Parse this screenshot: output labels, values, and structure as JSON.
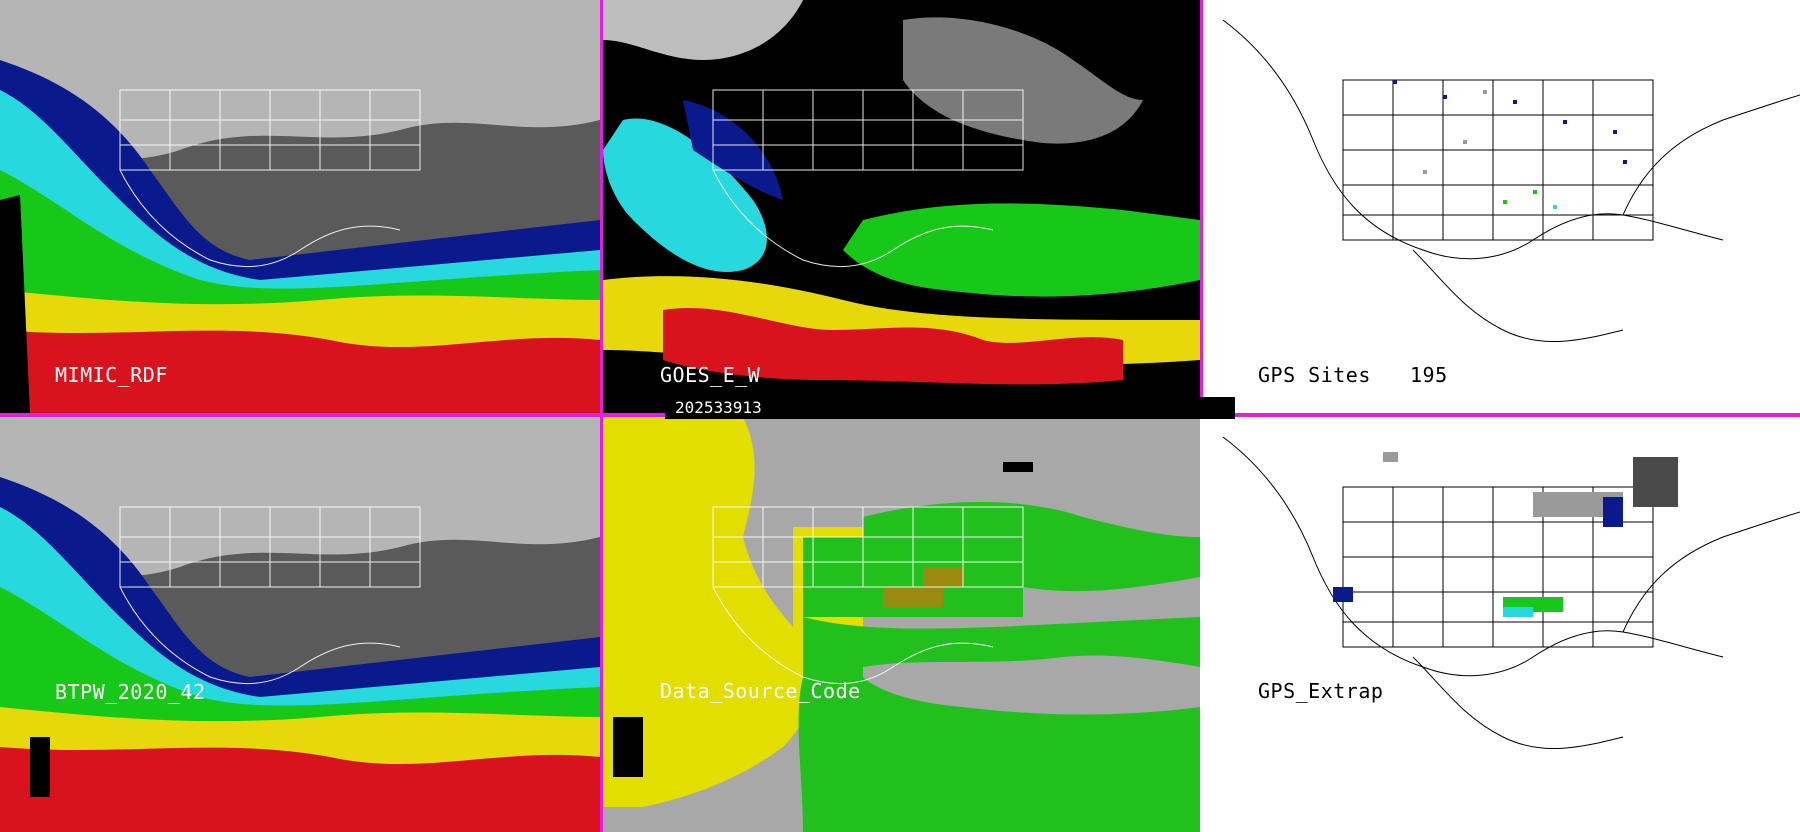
{
  "panels": {
    "p1": {
      "label": "MIMIC_RDF"
    },
    "p2": {
      "label": "GOES_E_W"
    },
    "p3": {
      "label": "GPS Sites",
      "count": "195"
    },
    "p4": {
      "label": "BTPW_2020_42"
    },
    "p5": {
      "label": "Data_Source_Code"
    },
    "p6": {
      "label": "GPS_Extrap"
    }
  },
  "timestamp": "202533913",
  "colors": {
    "separator": "#e11ee1",
    "gray": "#9a9a9a",
    "navy": "#0a1a8c",
    "cyan": "#27d9de",
    "green": "#18c818",
    "yellow": "#e6d80a",
    "red": "#d8131d",
    "dark": "#000000",
    "source_gray": "#a8a8a8",
    "source_yellow": "#e2de00",
    "source_green": "#22c01c",
    "source_olive": "#9a8a10"
  },
  "icons": [
    "map-coastline",
    "state-borders"
  ]
}
